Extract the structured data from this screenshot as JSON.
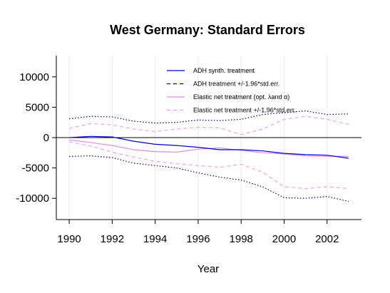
{
  "chart_data": {
    "type": "line",
    "title": "West Germany: Standard Errors",
    "xlabel": "Year",
    "ylabel": "",
    "xlim": [
      1989.4,
      2003.6
    ],
    "ylim": [
      -13500,
      13500
    ],
    "x_ticks": [
      "1990",
      "1992",
      "1994",
      "1996",
      "1998",
      "2000",
      "2002"
    ],
    "y_ticks": [
      "10000",
      "5000",
      "0",
      "-5000",
      "-10000"
    ],
    "reference_line": 0,
    "grid": "faint vertical lines at x ticks",
    "legend_position": "top-center",
    "x": [
      1990,
      1991,
      1992,
      1993,
      1994,
      1995,
      1996,
      1997,
      1998,
      1999,
      2000,
      2001,
      2002,
      2003
    ],
    "series": [
      {
        "name": "ADH synth. treatment",
        "color": "#0000cc",
        "dash": "solid",
        "values": [
          0,
          200,
          100,
          -600,
          -1100,
          -1300,
          -1600,
          -2000,
          -2000,
          -2200,
          -2600,
          -2800,
          -2900,
          -3400
        ]
      },
      {
        "name": "ADH treatment +/-1.96*std.err.",
        "color": "#00008b",
        "dash": "dotted",
        "band": "upper",
        "values": [
          3100,
          3500,
          3400,
          2700,
          2400,
          2500,
          2900,
          2800,
          3000,
          3800,
          4100,
          4400,
          3800,
          3900
        ]
      },
      {
        "name": "ADH treatment +/-1.96*std.err. (lower)",
        "color": "#00008b",
        "dash": "dotted",
        "band": "lower",
        "values": [
          -3100,
          -3000,
          -3300,
          -4200,
          -4600,
          -5000,
          -5800,
          -6500,
          -7000,
          -8100,
          -9900,
          -10000,
          -9700,
          -10500
        ]
      },
      {
        "name": "Elastic net treatment (opt. λand α)",
        "color": "#e08ee0",
        "dash": "solid",
        "values": [
          -400,
          -800,
          -1300,
          -2000,
          -2300,
          -2400,
          -1900,
          -1700,
          -2100,
          -2500,
          -2700,
          -3000,
          -3100,
          -3100
        ]
      },
      {
        "name": "Elastic net treatment +/-1.96*std.err.",
        "color": "#f0a0f0",
        "dash": "dashed",
        "band": "upper",
        "values": [
          1500,
          2300,
          2100,
          1400,
          1000,
          1400,
          1700,
          1600,
          500,
          1400,
          3000,
          3500,
          3000,
          2200
        ]
      },
      {
        "name": "Elastic net treatment +/-1.96*std.err. (lower)",
        "color": "#f0a0f0",
        "dash": "dashed",
        "band": "lower",
        "values": [
          -700,
          -1400,
          -2400,
          -3200,
          -3900,
          -4300,
          -4600,
          -4900,
          -4400,
          -5700,
          -8100,
          -8400,
          -8100,
          -8400
        ]
      }
    ],
    "legend": [
      {
        "label": "ADH synth. treatment",
        "series": 0
      },
      {
        "label": "ADH treatment +/-1.96*std.err.",
        "series": 1
      },
      {
        "label": "Elastic net treatment (opt. λand α)",
        "series": 3
      },
      {
        "label": "Elastic net treatment +/-1.96*std.err.",
        "series": 4
      }
    ]
  }
}
